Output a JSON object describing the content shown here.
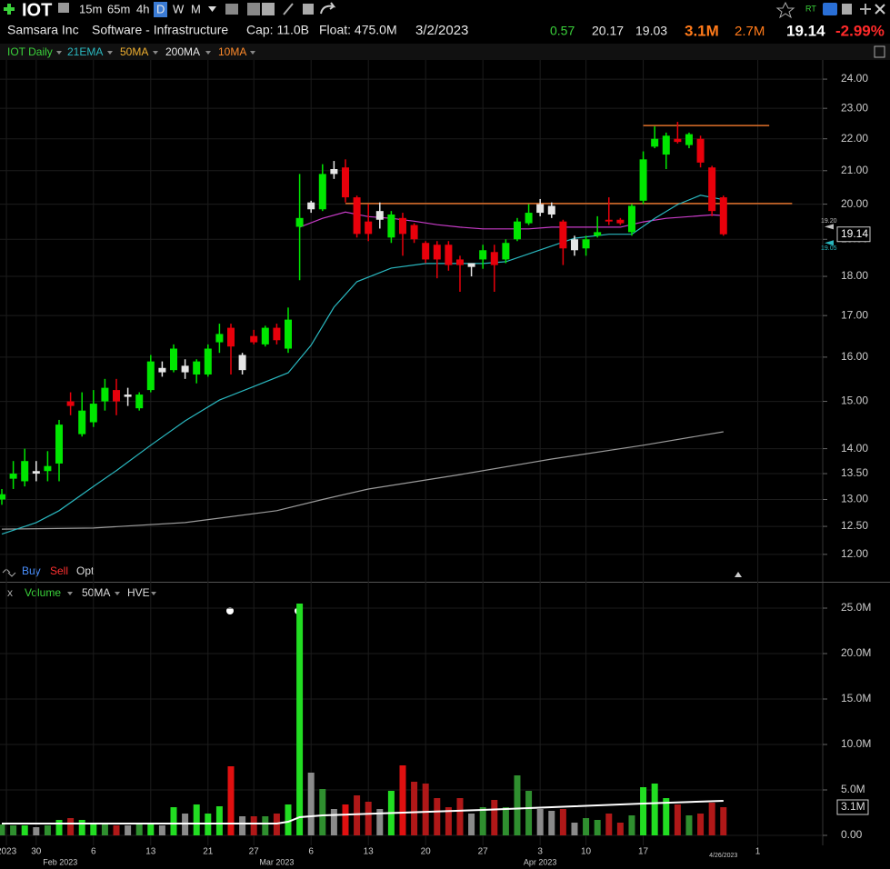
{
  "header": {
    "symbol": "IOT",
    "intervals": [
      "15m",
      "65m",
      "4h",
      "D",
      "W",
      "M"
    ],
    "rt": "RT",
    "company": "Samsara Inc",
    "industry": "Software - Infrastructure",
    "cap": "Cap: 11.0B",
    "float": "Float: 475.0M",
    "date": "3/2/2023",
    "stats": [
      "0.57",
      "20.17",
      "19.03"
    ],
    "volume": "3.1M",
    "avg_volume": "2.7M",
    "last": "19.14",
    "change": "-2.99%"
  },
  "legend": {
    "title": "IOT Daily",
    "studies": [
      "21EMA",
      "50MA",
      "200MA",
      "10MA"
    ]
  },
  "order_bar": [
    "Buy",
    "Sell",
    "Opt"
  ],
  "volume_bar": {
    "close": "x",
    "items": [
      "Volume",
      "50MA",
      "HVE"
    ]
  },
  "chart_data": [
    {
      "type": "candlestick",
      "log_scale": true,
      "grid": true,
      "xlim": [
        -0.16,
        71.67
      ],
      "ylim": [
        11.53,
        24.68
      ],
      "yticks": [
        {
          "value": 24,
          "label": "24.00"
        },
        {
          "value": 23,
          "label": "23.00"
        },
        {
          "value": 22,
          "label": "22.00"
        },
        {
          "value": 21,
          "label": "21.00"
        },
        {
          "value": 20,
          "label": "20.00"
        },
        {
          "value": 19,
          "label": "19.00"
        },
        {
          "value": 18,
          "label": "18.00"
        },
        {
          "value": 17,
          "label": "17.00"
        },
        {
          "value": 16,
          "label": "16.00"
        },
        {
          "value": 15,
          "label": "15.00"
        },
        {
          "value": 14,
          "label": "14.00"
        },
        {
          "value": 13.5,
          "label": "13.50"
        },
        {
          "value": 13,
          "label": "13.00"
        },
        {
          "value": 12.5,
          "label": "12.50"
        },
        {
          "value": 12,
          "label": "12.00"
        }
      ],
      "open": [
        13.0,
        13.4,
        13.35,
        13.5,
        13.55,
        13.7,
        15.0,
        14.3,
        14.55,
        15.0,
        15.25,
        15.1,
        14.85,
        15.25,
        15.65,
        15.7,
        15.65,
        15.6,
        15.6,
        16.35,
        16.7,
        15.7,
        16.5,
        16.3,
        16.7,
        16.2,
        19.35,
        19.85,
        19.85,
        20.9,
        21.1,
        20.2,
        19.5,
        19.55,
        19.05,
        19.6,
        19.4,
        18.9,
        18.85,
        18.85,
        18.45,
        18.25,
        18.45,
        18.65,
        18.45,
        19.0,
        19.45,
        19.75,
        19.7,
        19.5,
        18.7,
        18.75,
        19.1,
        19.55,
        19.55,
        19.2,
        20.1,
        21.75,
        21.5,
        22.0,
        21.8,
        22.0,
        21.1,
        20.2
      ],
      "high": [
        13.2,
        13.75,
        14.0,
        13.75,
        13.95,
        14.6,
        15.2,
        15.2,
        15.25,
        15.5,
        15.5,
        15.3,
        15.2,
        16.05,
        15.9,
        16.3,
        15.95,
        15.95,
        16.3,
        16.8,
        16.8,
        16.1,
        16.65,
        16.75,
        16.8,
        17.2,
        20.9,
        20.1,
        21.2,
        21.3,
        21.35,
        20.25,
        20.0,
        20.05,
        19.8,
        19.75,
        19.45,
        18.95,
        18.95,
        18.95,
        18.55,
        18.35,
        18.85,
        18.85,
        19.0,
        19.6,
        20.0,
        20.15,
        20.05,
        19.55,
        19.1,
        19.1,
        19.65,
        20.2,
        19.6,
        20.0,
        21.6,
        22.4,
        22.2,
        22.55,
        22.2,
        22.1,
        21.15,
        20.25
      ],
      "low": [
        12.9,
        13.2,
        13.25,
        13.35,
        13.35,
        13.35,
        14.7,
        14.25,
        14.45,
        14.8,
        14.7,
        14.9,
        14.8,
        15.2,
        15.55,
        15.65,
        15.5,
        15.4,
        15.55,
        16.1,
        15.6,
        15.6,
        16.3,
        16.25,
        16.3,
        16.1,
        17.9,
        19.75,
        19.8,
        20.75,
        20.05,
        19.05,
        18.95,
        19.3,
        18.9,
        18.55,
        18.9,
        18.35,
        17.95,
        18.15,
        17.6,
        18.0,
        18.2,
        17.6,
        18.35,
        18.95,
        19.4,
        19.65,
        19.6,
        18.3,
        18.55,
        18.55,
        19.05,
        19.4,
        19.4,
        19.1,
        20.0,
        21.7,
        21.05,
        21.85,
        21.7,
        21.1,
        19.65,
        19.1
      ],
      "close": [
        13.1,
        13.5,
        13.75,
        13.55,
        13.65,
        14.5,
        14.9,
        14.8,
        14.95,
        15.3,
        15.0,
        15.15,
        15.15,
        15.9,
        15.75,
        16.2,
        15.8,
        15.9,
        16.2,
        16.55,
        16.25,
        16.05,
        16.35,
        16.7,
        16.4,
        16.9,
        19.6,
        20.05,
        20.9,
        21.05,
        20.2,
        19.15,
        19.15,
        19.8,
        19.7,
        19.15,
        19.0,
        18.45,
        18.45,
        18.3,
        18.3,
        18.35,
        18.7,
        18.3,
        18.9,
        19.5,
        19.75,
        20.0,
        19.95,
        18.75,
        19.0,
        19.0,
        19.2,
        19.5,
        19.45,
        19.95,
        21.35,
        22.0,
        22.1,
        21.9,
        22.15,
        21.25,
        19.8,
        19.14
      ],
      "colors": [
        "#00e600",
        "#00e600",
        "#00e600",
        "#e6e6e6",
        "#00e600",
        "#00e600",
        "#e8000b",
        "#00e600",
        "#00e600",
        "#00e600",
        "#e8000b",
        "#e6e6e6",
        "#00e600",
        "#00e600",
        "#e6e6e6",
        "#00e600",
        "#e6e6e6",
        "#00e600",
        "#00e600",
        "#00e600",
        "#e8000b",
        "#e6e6e6",
        "#e8000b",
        "#00e600",
        "#e8000b",
        "#00e600",
        "#00e600",
        "#e6e6e6",
        "#00e600",
        "#e6e6e6",
        "#e8000b",
        "#e8000b",
        "#e8000b",
        "#e6e6e6",
        "#00e600",
        "#e8000b",
        "#e8000b",
        "#e8000b",
        "#e8000b",
        "#e8000b",
        "#e8000b",
        "#e6e6e6",
        "#00e600",
        "#e8000b",
        "#00e600",
        "#00e600",
        "#00e600",
        "#e6e6e6",
        "#e6e6e6",
        "#e8000b",
        "#e6e6e6",
        "#00e600",
        "#00e600",
        "#e8000b",
        "#e8000b",
        "#00e600",
        "#00e600",
        "#00e600",
        "#00e600",
        "#e8000b",
        "#00e600",
        "#e8000b",
        "#e8000b",
        "#e8000b"
      ],
      "series": [
        {
          "name": "200MA",
          "color": "#9a9a9a",
          "x": [
            0,
            8,
            16,
            24,
            28,
            32,
            40,
            48,
            56,
            63
          ],
          "values": [
            12.45,
            12.47,
            12.57,
            12.79,
            13.0,
            13.2,
            13.48,
            13.79,
            14.07,
            14.35
          ]
        },
        {
          "name": "50MA",
          "color": "#c83cc8",
          "x": [
            26,
            28,
            30,
            32,
            34,
            36,
            38,
            40,
            42,
            44,
            46,
            48,
            50,
            52,
            54,
            56,
            58,
            60,
            62,
            63
          ],
          "values": [
            19.34,
            19.59,
            19.77,
            19.64,
            19.59,
            19.51,
            19.41,
            19.34,
            19.29,
            19.29,
            19.29,
            19.34,
            19.34,
            19.34,
            19.34,
            19.49,
            19.59,
            19.64,
            19.69,
            19.67
          ]
        },
        {
          "name": "21EMA",
          "color": "#2ab8c0",
          "x": [
            0,
            3,
            5,
            8,
            10,
            13,
            16,
            19,
            22,
            25,
            27,
            29,
            31,
            34,
            37,
            40,
            42,
            44,
            47,
            50,
            53,
            55,
            57,
            59,
            61,
            63
          ],
          "values": [
            12.36,
            12.57,
            12.79,
            13.25,
            13.56,
            14.07,
            14.58,
            15.03,
            15.33,
            15.64,
            16.28,
            17.21,
            17.86,
            18.22,
            18.34,
            18.34,
            18.34,
            18.39,
            18.71,
            19.03,
            19.14,
            19.14,
            19.59,
            19.99,
            20.26,
            20.13
          ]
        }
      ],
      "drawn_lines": [
        {
          "y": 20.02,
          "x": [
            30,
            69
          ],
          "color": "#e0702a"
        },
        {
          "y": 22.43,
          "x": [
            56,
            67
          ],
          "color": "#e0702a"
        }
      ],
      "price_markers": [
        {
          "value": 19.2,
          "label": "19.20",
          "color": "#c0c0c0"
        },
        {
          "value": 19.05,
          "label": "19.05",
          "color": "#2ab8c0"
        },
        {
          "value": 19.14,
          "label": "19.14",
          "color": "#ffffff"
        }
      ]
    },
    {
      "type": "bar",
      "grid": true,
      "xlim": [
        -0.16,
        71.67
      ],
      "ylim": [
        -1100000,
        25900000
      ],
      "yticks": [
        {
          "value": 25000000,
          "label": "25.0M"
        },
        {
          "value": 20000000,
          "label": "20.0M"
        },
        {
          "value": 15000000,
          "label": "15.0M"
        },
        {
          "value": 10000000,
          "label": "10.0M"
        },
        {
          "value": 5000000,
          "label": "5.0M"
        },
        {
          "value": 0,
          "label": "0.00"
        }
      ],
      "values": [
        1200000,
        1100000,
        1100000,
        900000,
        1100000,
        1700000,
        1900000,
        1700000,
        1400000,
        1400000,
        1100000,
        1100000,
        1400000,
        1400000,
        1100000,
        3100000,
        2400000,
        3400000,
        2400000,
        3200000,
        7600000,
        2100000,
        2100000,
        2100000,
        2400000,
        3400000,
        25500000,
        6900000,
        5100000,
        2900000,
        3400000,
        4400000,
        3700000,
        2900000,
        4900000,
        7700000,
        5900000,
        5700000,
        4100000,
        3100000,
        4100000,
        2400000,
        3100000,
        3900000,
        3100000,
        6600000,
        4900000,
        2900000,
        2700000,
        2900000,
        1400000,
        1900000,
        1700000,
        2400000,
        1400000,
        2200000,
        5300000,
        5700000,
        4100000,
        3400000,
        2200000,
        2400000,
        3600000,
        3100000
      ],
      "colors": [
        "#2f8f2f",
        "#2f8f2f",
        "#22dd22",
        "#8a8a8a",
        "#2f8f2f",
        "#22dd22",
        "#b01818",
        "#22dd22",
        "#22dd22",
        "#2f8f2f",
        "#b01818",
        "#8a8a8a",
        "#2f8f2f",
        "#22dd22",
        "#8a8a8a",
        "#22dd22",
        "#8a8a8a",
        "#22dd22",
        "#22dd22",
        "#22dd22",
        "#e01010",
        "#8a8a8a",
        "#b01818",
        "#2f8f2f",
        "#b01818",
        "#22dd22",
        "#22dd22",
        "#8a8a8a",
        "#2f8f2f",
        "#8a8a8a",
        "#e01010",
        "#b01818",
        "#b01818",
        "#8a8a8a",
        "#22dd22",
        "#e01010",
        "#b01818",
        "#b01818",
        "#b01818",
        "#b01818",
        "#b01818",
        "#8a8a8a",
        "#2f8f2f",
        "#b01818",
        "#2f8f2f",
        "#2f8f2f",
        "#2f8f2f",
        "#8a8a8a",
        "#8a8a8a",
        "#b01818",
        "#8a8a8a",
        "#2f8f2f",
        "#2f8f2f",
        "#b01818",
        "#b01818",
        "#2f8f2f",
        "#22dd22",
        "#22dd22",
        "#22dd22",
        "#b01818",
        "#2f8f2f",
        "#b01818",
        "#b01818",
        "#b01818"
      ],
      "series": [
        {
          "name": "50MA",
          "color": "#ffffff",
          "x": [
            0,
            24,
            25,
            26,
            28,
            35,
            42,
            50,
            56,
            63
          ],
          "values": [
            1300000,
            1300000,
            1500000,
            2000000,
            2200000,
            2500000,
            2800000,
            3200000,
            3500000,
            3800000
          ]
        }
      ],
      "last_label": {
        "value": 3100000,
        "label": "3.1M"
      },
      "xticks": [
        {
          "value": 0.4,
          "label": "2023"
        },
        {
          "value": 3,
          "label": "30"
        },
        {
          "value": 8,
          "label": "6"
        },
        {
          "value": 13,
          "label": "13"
        },
        {
          "value": 18,
          "label": "21"
        },
        {
          "value": 22,
          "label": "27"
        },
        {
          "value": 27,
          "label": "6"
        },
        {
          "value": 32,
          "label": "13"
        },
        {
          "value": 37,
          "label": "20"
        },
        {
          "value": 42,
          "label": "27"
        },
        {
          "value": 47,
          "label": "3"
        },
        {
          "value": 51,
          "label": "10"
        },
        {
          "value": 56,
          "label": "17"
        },
        {
          "value": 66,
          "label": "1"
        }
      ],
      "month_ticks": [
        {
          "value": 5.1,
          "label": "Feb 2023"
        },
        {
          "value": 24,
          "label": "Mar 2023"
        },
        {
          "value": 47,
          "label": "Apr 2023"
        }
      ],
      "cursor_label": {
        "value": 63,
        "label": "4/26/2023"
      }
    }
  ]
}
